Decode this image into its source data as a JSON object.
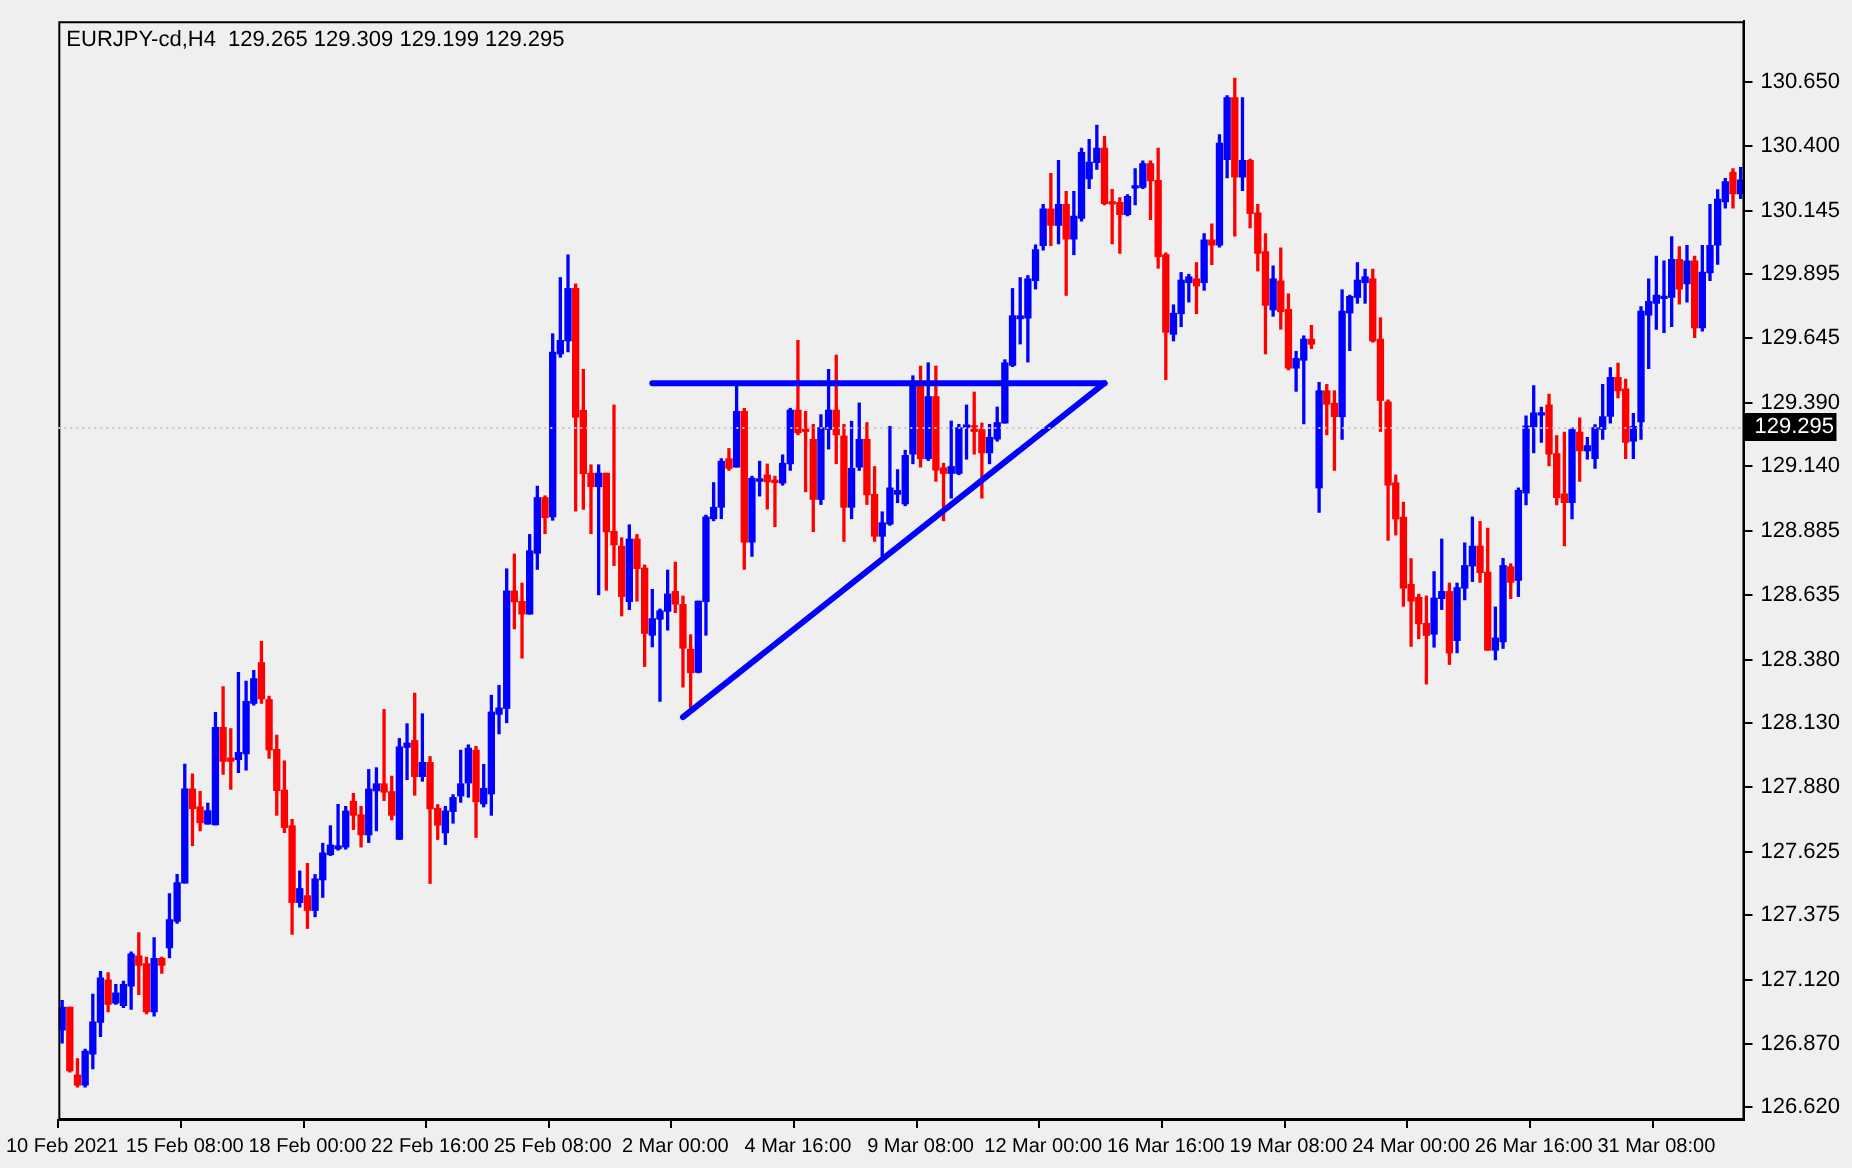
{
  "chart_data": {
    "type": "candlestick",
    "title": "EURJPY-cd,H4  129.265 129.309 129.199 129.295",
    "categories": [
      "10 Feb 2021",
      null,
      null,
      null,
      null,
      null,
      null,
      null,
      null,
      null,
      null,
      null,
      null,
      null,
      null,
      null,
      "15 Feb 08:00",
      null,
      null,
      null,
      null,
      null,
      null,
      null,
      null,
      null,
      null,
      null,
      null,
      null,
      null,
      null,
      "18 Feb 00:00",
      null,
      null,
      null,
      null,
      null,
      null,
      null,
      null,
      null,
      null,
      null,
      null,
      null,
      null,
      null,
      "22 Feb 16:00",
      null,
      null,
      null,
      null,
      null,
      null,
      null,
      null,
      null,
      null,
      null,
      null,
      null,
      null,
      null,
      "25 Feb 08:00",
      null,
      null,
      null,
      null,
      null,
      null,
      null,
      null,
      null,
      null,
      null,
      null,
      null,
      null,
      null,
      "2 Mar 00:00",
      null,
      null,
      null,
      null,
      null,
      null,
      null,
      null,
      null,
      null,
      null,
      null,
      null,
      null,
      null,
      "4 Mar 16:00",
      null,
      null,
      null,
      null,
      null,
      null,
      null,
      null,
      null,
      null,
      null,
      null,
      null,
      null,
      null,
      "9 Mar 08:00",
      null,
      null,
      null,
      null,
      null,
      null,
      null,
      null,
      null,
      null,
      null,
      null,
      null,
      null,
      null,
      "12 Mar 00:00",
      null,
      null,
      null,
      null,
      null,
      null,
      null,
      null,
      null,
      null,
      null,
      null,
      null,
      null,
      null,
      "16 Mar 16:00",
      null,
      null,
      null,
      null,
      null,
      null,
      null,
      null,
      null,
      null,
      null,
      null,
      null,
      null,
      null,
      "19 Mar 08:00",
      null,
      null,
      null,
      null,
      null,
      null,
      null,
      null,
      null,
      null,
      null,
      null,
      null,
      null,
      null,
      "24 Mar 00:00",
      null,
      null,
      null,
      null,
      null,
      null,
      null,
      null,
      null,
      null,
      null,
      null,
      null,
      null,
      null,
      "26 Mar 16:00",
      null,
      null,
      null,
      null,
      null,
      null,
      null,
      null,
      null,
      null,
      null,
      null,
      null,
      null,
      null,
      "31 Mar 08:00",
      null,
      null,
      null,
      null,
      null,
      null,
      null,
      null,
      null,
      null,
      null
    ],
    "ohlc": [
      [
        126.924,
        127.039,
        126.873,
        127.013
      ],
      [
        127.013,
        127.013,
        126.759,
        126.764
      ],
      [
        126.746,
        126.81,
        126.7,
        126.708
      ],
      [
        126.708,
        126.848,
        126.7,
        126.84
      ],
      [
        126.83,
        127.064,
        126.772,
        126.955
      ],
      [
        126.955,
        127.153,
        126.899,
        127.128
      ],
      [
        127.12,
        127.148,
        126.996,
        127.026
      ],
      [
        127.031,
        127.102,
        127.026,
        127.069
      ],
      [
        127.021,
        127.115,
        127.013,
        127.102
      ],
      [
        127.097,
        127.23,
        127.006,
        127.222
      ],
      [
        127.214,
        127.306,
        127.064,
        127.179
      ],
      [
        127.184,
        127.209,
        126.988,
        126.996
      ],
      [
        126.996,
        127.286,
        126.98,
        127.204
      ],
      [
        127.204,
        127.209,
        127.148,
        127.179
      ],
      [
        127.248,
        127.459,
        127.209,
        127.357
      ],
      [
        127.352,
        127.535,
        127.344,
        127.502
      ],
      [
        127.502,
        127.968,
        127.502,
        127.871
      ],
      [
        127.871,
        127.93,
        127.65,
        127.795
      ],
      [
        127.8,
        127.861,
        127.708,
        127.739
      ],
      [
        127.734,
        127.815,
        127.734,
        127.785
      ],
      [
        127.731,
        128.171,
        127.731,
        128.113
      ],
      [
        128.113,
        128.273,
        127.93,
        127.981
      ],
      [
        127.993,
        128.108,
        127.871,
        127.981
      ],
      [
        127.988,
        128.329,
        127.937,
        128.014
      ],
      [
        128.011,
        128.294,
        127.947,
        128.215
      ],
      [
        128.209,
        128.337,
        128.202,
        128.304
      ],
      [
        128.367,
        128.451,
        128.209,
        128.227
      ],
      [
        128.222,
        128.235,
        127.993,
        128.026
      ],
      [
        128.026,
        128.082,
        127.769,
        127.866
      ],
      [
        127.866,
        127.981,
        127.701,
        127.721
      ],
      [
        127.726,
        127.751,
        127.301,
        127.426
      ],
      [
        127.426,
        127.548,
        127.408,
        127.479
      ],
      [
        127.451,
        127.578,
        127.324,
        127.395
      ],
      [
        127.395,
        127.534,
        127.37,
        127.517
      ],
      [
        127.515,
        127.657,
        127.446,
        127.619
      ],
      [
        127.614,
        127.726,
        127.611,
        127.65
      ],
      [
        127.637,
        127.81,
        127.632,
        127.647
      ],
      [
        127.644,
        127.802,
        127.636,
        127.784
      ],
      [
        127.822,
        127.853,
        127.713,
        127.769
      ],
      [
        127.769,
        127.802,
        127.644,
        127.692
      ],
      [
        127.692,
        127.947,
        127.662,
        127.87
      ],
      [
        127.865,
        127.954,
        127.708,
        127.891
      ],
      [
        127.891,
        128.183,
        127.827,
        127.86
      ],
      [
        127.86,
        127.921,
        127.751,
        127.769
      ],
      [
        127.674,
        128.069,
        127.674,
        128.036
      ],
      [
        128.036,
        128.127,
        127.909,
        128.051
      ],
      [
        128.061,
        128.247,
        127.848,
        127.921
      ],
      [
        127.921,
        128.166,
        127.903,
        127.975
      ],
      [
        127.975,
        127.998,
        127.501,
        127.794
      ],
      [
        127.794,
        127.809,
        127.674,
        127.73
      ],
      [
        127.7,
        127.802,
        127.654,
        127.784
      ],
      [
        127.784,
        127.848,
        127.738,
        127.837
      ],
      [
        127.845,
        128.023,
        127.82,
        127.891
      ],
      [
        127.896,
        128.044,
        127.84,
        128.031
      ],
      [
        128.023,
        128.038,
        127.682,
        127.822
      ],
      [
        127.814,
        127.967,
        127.802,
        127.873
      ],
      [
        127.853,
        128.239,
        127.769,
        128.173
      ],
      [
        128.166,
        128.278,
        128.089,
        128.189
      ],
      [
        128.189,
        128.736,
        128.133,
        128.649
      ],
      [
        128.649,
        128.794,
        128.502,
        128.608
      ],
      [
        128.608,
        128.68,
        128.387,
        128.56
      ],
      [
        128.56,
        128.871,
        128.56,
        128.807
      ],
      [
        128.799,
        129.061,
        128.736,
        129.016
      ],
      [
        129.016,
        129.023,
        128.876,
        128.939
      ],
      [
        128.942,
        129.66,
        128.929,
        129.588
      ],
      [
        129.583,
        129.881,
        129.57,
        129.634
      ],
      [
        129.634,
        129.97,
        129.591,
        129.838
      ],
      [
        129.838,
        129.856,
        128.965,
        129.334
      ],
      [
        129.359,
        129.52,
        128.972,
        129.112
      ],
      [
        129.112,
        129.145,
        128.876,
        129.061
      ],
      [
        129.061,
        129.145,
        128.636,
        129.112
      ],
      [
        129.112,
        129.112,
        128.654,
        128.883
      ],
      [
        128.883,
        129.38,
        128.751,
        128.832
      ],
      [
        128.825,
        128.858,
        128.553,
        128.629
      ],
      [
        128.609,
        128.909,
        128.578,
        128.853
      ],
      [
        128.853,
        128.871,
        128.611,
        128.739
      ],
      [
        128.739,
        128.751,
        128.354,
        128.484
      ],
      [
        128.477,
        128.655,
        128.431,
        128.54
      ],
      [
        128.54,
        128.578,
        128.217,
        128.571
      ],
      [
        128.571,
        128.731,
        128.497,
        128.637
      ],
      [
        128.647,
        128.762,
        128.566,
        128.599
      ],
      [
        128.596,
        128.629,
        128.273,
        128.426
      ],
      [
        128.42,
        128.477,
        128.191,
        128.329
      ],
      [
        128.331,
        128.609,
        128.329,
        128.609
      ],
      [
        128.609,
        128.947,
        128.477,
        128.94
      ],
      [
        128.935,
        129.075,
        128.927,
        128.978
      ],
      [
        128.98,
        129.169,
        128.935,
        129.159
      ],
      [
        129.169,
        129.209,
        129.125,
        129.133
      ],
      [
        129.138,
        129.456,
        129.138,
        129.355
      ],
      [
        129.355,
        129.367,
        128.736,
        128.843
      ],
      [
        128.843,
        129.1,
        128.787,
        129.092
      ],
      [
        129.082,
        129.159,
        129.024,
        129.09
      ],
      [
        129.105,
        129.148,
        128.973,
        129.08
      ],
      [
        129.082,
        129.1,
        128.904,
        129.077
      ],
      [
        129.075,
        129.184,
        129.067,
        129.151
      ],
      [
        129.151,
        129.367,
        129.125,
        129.36
      ],
      [
        129.36,
        129.634,
        129.265,
        129.273
      ],
      [
        129.281,
        129.355,
        129.041,
        129.278
      ],
      [
        129.245,
        129.304,
        128.884,
        129.011
      ],
      [
        129.011,
        129.342,
        128.991,
        129.291
      ],
      [
        129.286,
        129.52,
        129.209,
        129.36
      ],
      [
        129.36,
        129.576,
        129.151,
        129.265
      ],
      [
        129.258,
        129.304,
        128.846,
        128.98
      ],
      [
        128.98,
        129.316,
        128.935,
        129.131
      ],
      [
        129.138,
        129.388,
        129.125,
        129.245
      ],
      [
        129.245,
        129.311,
        128.991,
        129.029
      ],
      [
        129.029,
        129.138,
        128.846,
        128.866
      ],
      [
        128.866,
        128.96,
        128.787,
        128.917
      ],
      [
        128.914,
        129.296,
        128.909,
        129.054
      ],
      [
        129.031,
        129.126,
        128.998,
        129.044
      ],
      [
        128.993,
        129.202,
        128.986,
        129.182
      ],
      [
        129.189,
        129.495,
        129.151,
        129.469
      ],
      [
        129.469,
        129.533,
        129.138,
        129.171
      ],
      [
        129.171,
        129.546,
        129.164,
        129.413
      ],
      [
        129.413,
        129.533,
        129.082,
        129.126
      ],
      [
        129.133,
        129.151,
        128.927,
        129.113
      ],
      [
        129.113,
        129.317,
        129.016,
        129.138
      ],
      [
        129.113,
        129.304,
        129.108,
        129.291
      ],
      [
        129.294,
        129.38,
        129.169,
        129.299
      ],
      [
        129.299,
        129.431,
        129.189,
        129.278
      ],
      [
        129.283,
        129.309,
        129.016,
        129.194
      ],
      [
        129.194,
        129.304,
        129.151,
        129.253
      ],
      [
        129.248,
        129.372,
        129.24,
        129.311
      ],
      [
        129.311,
        129.558,
        129.311,
        129.546
      ],
      [
        129.538,
        129.838,
        129.533,
        129.731
      ],
      [
        129.721,
        129.881,
        129.622,
        129.731
      ],
      [
        129.724,
        129.889,
        129.551,
        129.876
      ],
      [
        129.871,
        130.009,
        129.838,
        129.991
      ],
      [
        130.009,
        130.169,
        129.991,
        130.151
      ],
      [
        130.151,
        130.291,
        130.009,
        130.088
      ],
      [
        130.088,
        130.342,
        130.016,
        130.169
      ],
      [
        130.169,
        130.22,
        129.813,
        130.034
      ],
      [
        130.034,
        130.22,
        129.973,
        130.123
      ],
      [
        130.116,
        130.39,
        130.105,
        130.373
      ],
      [
        130.271,
        130.424,
        130.233,
        130.335
      ],
      [
        130.335,
        130.48,
        130.309,
        130.39
      ],
      [
        130.39,
        130.436,
        130.169,
        130.174
      ],
      [
        130.177,
        130.228,
        130.016,
        130.172
      ],
      [
        130.177,
        130.195,
        129.978,
        130.131
      ],
      [
        130.131,
        130.207,
        130.126,
        130.2
      ],
      [
        130.235,
        130.309,
        130.169,
        130.24
      ],
      [
        130.238,
        130.34,
        130.233,
        130.329
      ],
      [
        130.329,
        130.34,
        130.111,
        130.263
      ],
      [
        130.263,
        130.39,
        129.92,
        129.965
      ],
      [
        129.971,
        129.978,
        129.482,
        129.668
      ],
      [
        129.66,
        129.774,
        129.634,
        129.741
      ],
      [
        129.741,
        129.901,
        129.69,
        129.871
      ],
      [
        129.863,
        129.894,
        129.787,
        129.884
      ],
      [
        129.876,
        129.94,
        129.741,
        129.85
      ],
      [
        129.863,
        130.054,
        129.833,
        130.029
      ],
      [
        130.029,
        130.092,
        129.934,
        130.011
      ],
      [
        130.011,
        130.443,
        130.003,
        130.41
      ],
      [
        130.347,
        130.596,
        130.275,
        130.588
      ],
      [
        130.588,
        130.665,
        130.046,
        130.278
      ],
      [
        130.278,
        130.588,
        130.225,
        130.342
      ],
      [
        130.342,
        130.347,
        130.079,
        130.135
      ],
      [
        130.135,
        130.169,
        129.909,
        129.978
      ],
      [
        129.983,
        130.054,
        129.583,
        129.774
      ],
      [
        129.756,
        129.927,
        129.731,
        129.876
      ],
      [
        129.868,
        129.998,
        129.68,
        129.749
      ],
      [
        129.756,
        129.817,
        129.52,
        129.527
      ],
      [
        129.527,
        129.591,
        129.436,
        129.563
      ],
      [
        129.558,
        129.652,
        129.308,
        129.639
      ],
      [
        129.639,
        129.693,
        129.604,
        129.621
      ],
      [
        129.056,
        129.469,
        128.96,
        129.436
      ],
      [
        129.436,
        129.461,
        129.265,
        129.385
      ],
      [
        129.387,
        129.436,
        129.125,
        129.336
      ],
      [
        129.336,
        129.833,
        129.247,
        129.749
      ],
      [
        129.744,
        129.812,
        129.596,
        129.807
      ],
      [
        129.805,
        129.94,
        129.782,
        129.871
      ],
      [
        129.863,
        129.914,
        129.782,
        129.884
      ],
      [
        129.876,
        129.914,
        129.629,
        129.634
      ],
      [
        129.639,
        129.723,
        129.278,
        129.4
      ],
      [
        129.392,
        129.4,
        128.85,
        129.067
      ],
      [
        129.074,
        129.105,
        128.871,
        128.934
      ],
      [
        128.939,
        128.998,
        128.591,
        128.662
      ],
      [
        128.675,
        128.776,
        128.433,
        128.611
      ],
      [
        128.624,
        128.636,
        128.463,
        128.522
      ],
      [
        128.522,
        128.629,
        128.285,
        128.476
      ],
      [
        128.481,
        128.725,
        128.43,
        128.621
      ],
      [
        128.621,
        128.853,
        128.578,
        128.647
      ],
      [
        128.647,
        128.68,
        128.362,
        128.407
      ],
      [
        128.456,
        128.68,
        128.408,
        128.662
      ],
      [
        128.662,
        128.838,
        128.616,
        128.749
      ],
      [
        128.749,
        128.94,
        128.688,
        128.825
      ],
      [
        128.825,
        128.922,
        128.685,
        128.723
      ],
      [
        128.723,
        128.896,
        128.418,
        128.418
      ],
      [
        128.418,
        128.586,
        128.38,
        128.464
      ],
      [
        128.451,
        128.777,
        128.425,
        128.749
      ],
      [
        128.744,
        128.756,
        128.621,
        128.685
      ],
      [
        128.693,
        129.054,
        128.629,
        129.044
      ],
      [
        129.036,
        129.337,
        128.99,
        129.298
      ],
      [
        129.296,
        129.456,
        129.194,
        129.349
      ],
      [
        129.342,
        129.372,
        129.235,
        129.349
      ],
      [
        129.38,
        129.423,
        129.143,
        129.189
      ],
      [
        129.189,
        129.26,
        128.99,
        129.018
      ],
      [
        129.031,
        129.273,
        128.828,
        128.998
      ],
      [
        128.998,
        129.291,
        128.934,
        129.283
      ],
      [
        129.273,
        129.329,
        129.082,
        129.202
      ],
      [
        129.202,
        129.253,
        129.169,
        129.22
      ],
      [
        129.171,
        129.303,
        129.133,
        129.291
      ],
      [
        129.286,
        129.461,
        129.247,
        129.334
      ],
      [
        129.337,
        129.527,
        129.311,
        129.489
      ],
      [
        129.489,
        129.545,
        129.41,
        129.438
      ],
      [
        129.443,
        129.482,
        129.171,
        129.235
      ],
      [
        129.24,
        129.347,
        129.171,
        129.296
      ],
      [
        129.316,
        129.767,
        129.247,
        129.749
      ],
      [
        129.736,
        129.876,
        129.525,
        129.787
      ],
      [
        129.782,
        129.965,
        129.68,
        129.812
      ],
      [
        129.8,
        129.947,
        129.667,
        129.805
      ],
      [
        129.805,
        130.042,
        129.69,
        129.952
      ],
      [
        129.952,
        130.003,
        129.779,
        129.838
      ],
      [
        129.858,
        130.008,
        129.787,
        129.947
      ],
      [
        129.947,
        129.965,
        129.647,
        129.685
      ],
      [
        129.685,
        130.008,
        129.673,
        129.902
      ],
      [
        129.902,
        130.169,
        129.871,
        130.008
      ],
      [
        130.011,
        130.227,
        129.935,
        130.189
      ],
      [
        130.181,
        130.271,
        130.156,
        130.258
      ],
      [
        130.296,
        130.309,
        130.156,
        130.212
      ],
      [
        130.212,
        130.314,
        130.194,
        130.265
      ]
    ],
    "colors": [
      "#0000ff",
      "#ff0000",
      "#ff0000",
      "#0000ff",
      "#0000ff",
      "#0000ff",
      "#ff0000",
      "#0000ff",
      "#0000ff",
      "#0000ff",
      "#ff0000",
      "#ff0000",
      "#0000ff",
      "#ff0000",
      "#0000ff",
      "#0000ff",
      "#0000ff",
      "#ff0000",
      "#ff0000",
      "#0000ff",
      "#0000ff",
      "#ff0000",
      "#ff0000",
      "#0000ff",
      "#0000ff",
      "#0000ff",
      "#ff0000",
      "#ff0000",
      "#ff0000",
      "#ff0000",
      "#ff0000",
      "#0000ff",
      "#ff0000",
      "#0000ff",
      "#0000ff",
      "#0000ff",
      "#0000ff",
      "#0000ff",
      "#ff0000",
      "#ff0000",
      "#0000ff",
      "#0000ff",
      "#ff0000",
      "#ff0000",
      "#0000ff",
      "#0000ff",
      "#ff0000",
      "#0000ff",
      "#ff0000",
      "#ff0000",
      "#0000ff",
      "#0000ff",
      "#0000ff",
      "#0000ff",
      "#ff0000",
      "#0000ff",
      "#0000ff",
      "#0000ff",
      "#0000ff",
      "#ff0000",
      "#ff0000",
      "#0000ff",
      "#0000ff",
      "#ff0000",
      "#0000ff",
      "#0000ff",
      "#0000ff",
      "#ff0000",
      "#ff0000",
      "#ff0000",
      "#0000ff",
      "#ff0000",
      "#ff0000",
      "#ff0000",
      "#0000ff",
      "#ff0000",
      "#ff0000",
      "#0000ff",
      "#0000ff",
      "#0000ff",
      "#ff0000",
      "#ff0000",
      "#ff0000",
      "#0000ff",
      "#0000ff",
      "#0000ff",
      "#0000ff",
      "#ff0000",
      "#0000ff",
      "#ff0000",
      "#0000ff",
      "#0000ff",
      "#ff0000",
      "#ff0000",
      "#0000ff",
      "#0000ff",
      "#ff0000",
      "#ff0000",
      "#ff0000",
      "#0000ff",
      "#0000ff",
      "#ff0000",
      "#ff0000",
      "#0000ff",
      "#0000ff",
      "#ff0000",
      "#ff0000",
      "#0000ff",
      "#0000ff",
      "#0000ff",
      "#0000ff",
      "#0000ff",
      "#ff0000",
      "#0000ff",
      "#ff0000",
      "#ff0000",
      "#0000ff",
      "#0000ff",
      "#0000ff",
      "#ff0000",
      "#ff0000",
      "#0000ff",
      "#0000ff",
      "#0000ff",
      "#0000ff",
      "#0000ff",
      "#0000ff",
      "#0000ff",
      "#0000ff",
      "#ff0000",
      "#0000ff",
      "#ff0000",
      "#0000ff",
      "#0000ff",
      "#0000ff",
      "#0000ff",
      "#ff0000",
      "#ff0000",
      "#ff0000",
      "#0000ff",
      "#0000ff",
      "#0000ff",
      "#ff0000",
      "#ff0000",
      "#ff0000",
      "#0000ff",
      "#0000ff",
      "#0000ff",
      "#ff0000",
      "#0000ff",
      "#ff0000",
      "#0000ff",
      "#0000ff",
      "#ff0000",
      "#0000ff",
      "#ff0000",
      "#ff0000",
      "#ff0000",
      "#0000ff",
      "#ff0000",
      "#ff0000",
      "#0000ff",
      "#0000ff",
      "#ff0000",
      "#0000ff",
      "#ff0000",
      "#ff0000",
      "#0000ff",
      "#0000ff",
      "#0000ff",
      "#0000ff",
      "#ff0000",
      "#ff0000",
      "#ff0000",
      "#ff0000",
      "#ff0000",
      "#ff0000",
      "#ff0000",
      "#ff0000",
      "#0000ff",
      "#0000ff",
      "#ff0000",
      "#0000ff",
      "#0000ff",
      "#0000ff",
      "#ff0000",
      "#ff0000",
      "#0000ff",
      "#0000ff",
      "#ff0000",
      "#0000ff",
      "#0000ff",
      "#0000ff",
      "#0000ff",
      "#ff0000",
      "#ff0000",
      "#ff0000",
      "#0000ff",
      "#ff0000",
      "#0000ff",
      "#0000ff",
      "#0000ff",
      "#0000ff",
      "#ff0000",
      "#ff0000",
      "#0000ff",
      "#0000ff",
      "#0000ff",
      "#0000ff",
      "#0000ff",
      "#0000ff",
      "#ff0000",
      "#0000ff",
      "#ff0000",
      "#0000ff",
      "#0000ff",
      "#0000ff",
      "#0000ff",
      "#ff0000",
      "#0000ff"
    ],
    "series": [
      {
        "type": "line",
        "color": "#0000ff",
        "values": [
          null,
          null,
          null,
          null,
          null,
          null,
          null,
          null,
          null,
          null,
          null,
          null,
          null,
          null,
          null,
          null,
          null,
          null,
          null,
          null,
          null,
          null,
          null,
          null,
          null,
          null,
          null,
          null,
          null,
          null,
          null,
          null,
          null,
          null,
          null,
          null,
          null,
          null,
          null,
          null,
          null,
          null,
          null,
          null,
          null,
          null,
          null,
          null,
          null,
          null,
          null,
          null,
          null,
          null,
          null,
          null,
          null,
          null,
          null,
          null,
          null,
          null,
          null,
          null,
          null,
          null,
          null,
          null,
          null,
          null,
          null,
          null,
          null,
          null,
          null,
          null,
          null,
          129.467,
          null,
          null,
          null,
          null,
          null,
          null,
          null,
          null,
          null,
          null,
          null,
          null,
          null,
          null,
          null,
          null,
          null,
          null,
          null,
          null,
          null,
          null,
          null,
          null,
          null,
          null,
          null,
          null,
          null,
          null,
          null,
          null,
          null,
          null,
          null,
          null,
          null,
          null,
          null,
          null,
          null,
          null,
          null,
          null,
          null,
          null,
          null,
          null,
          null,
          null,
          null,
          null,
          null,
          null,
          null,
          null,
          null,
          null,
          129.467,
          null,
          null,
          null,
          null,
          null,
          null,
          null,
          null,
          null,
          null,
          null,
          null,
          null,
          null,
          null,
          null,
          null,
          null,
          null,
          null,
          null,
          null,
          null,
          null,
          null,
          null,
          null,
          null,
          null,
          null,
          null,
          null,
          null,
          null,
          null,
          null,
          null,
          null,
          null,
          null,
          null,
          null,
          null,
          null,
          null,
          null,
          null,
          null,
          null,
          null,
          null,
          null,
          null,
          null,
          null,
          null,
          null,
          null,
          null,
          null,
          null,
          null,
          null,
          null,
          null,
          null,
          null,
          null,
          null,
          null,
          null,
          null,
          null,
          null,
          null,
          null,
          null,
          null,
          null,
          null,
          null,
          null,
          null
        ]
      },
      {
        "type": "line",
        "color": "#0000ff",
        "values": [
          null,
          null,
          null,
          null,
          null,
          null,
          null,
          null,
          null,
          null,
          null,
          null,
          null,
          null,
          null,
          null,
          null,
          null,
          null,
          null,
          null,
          null,
          null,
          null,
          null,
          null,
          null,
          null,
          null,
          null,
          null,
          null,
          null,
          null,
          null,
          null,
          null,
          null,
          null,
          null,
          null,
          null,
          null,
          null,
          null,
          null,
          null,
          null,
          null,
          null,
          null,
          null,
          null,
          null,
          null,
          null,
          null,
          null,
          null,
          null,
          null,
          null,
          null,
          null,
          null,
          null,
          null,
          null,
          null,
          null,
          null,
          null,
          null,
          null,
          null,
          null,
          null,
          null,
          null,
          null,
          null,
          128.154,
          null,
          null,
          null,
          null,
          null,
          null,
          null,
          null,
          null,
          null,
          null,
          null,
          null,
          null,
          null,
          null,
          null,
          null,
          null,
          null,
          null,
          null,
          null,
          null,
          null,
          null,
          null,
          null,
          null,
          null,
          null,
          null,
          null,
          null,
          null,
          null,
          null,
          null,
          null,
          null,
          null,
          null,
          null,
          null,
          null,
          null,
          null,
          null,
          null,
          null,
          null,
          null,
          null,
          null,
          129.467,
          null,
          null,
          null,
          null,
          null,
          null,
          null,
          null,
          null,
          null,
          null,
          null,
          null,
          null,
          null,
          null,
          null,
          null,
          null,
          null,
          null,
          null,
          null,
          null,
          null,
          null,
          null,
          null,
          null,
          null,
          null,
          null,
          null,
          null,
          null,
          null,
          null,
          null,
          null,
          null,
          null,
          null,
          null,
          null,
          null,
          null,
          null,
          null,
          null,
          null,
          null,
          null,
          null,
          null,
          null,
          null,
          null,
          null,
          null,
          null,
          null,
          null,
          null,
          null,
          null,
          null,
          null,
          null,
          null,
          null,
          null,
          null,
          null,
          null,
          null,
          null,
          null,
          null,
          null,
          null,
          null,
          null,
          null
        ]
      }
    ],
    "ylim": [
      126.57,
      130.89
    ],
    "yticks": [
      {
        "value": 126.62,
        "label": "126.620"
      },
      {
        "value": 126.87,
        "label": "126.870"
      },
      {
        "value": 127.12,
        "label": "127.120"
      },
      {
        "value": 127.375,
        "label": "127.375"
      },
      {
        "value": 127.625,
        "label": "127.625"
      },
      {
        "value": 127.88,
        "label": "127.880"
      },
      {
        "value": 128.13,
        "label": "128.130"
      },
      {
        "value": 128.38,
        "label": "128.380"
      },
      {
        "value": 128.635,
        "label": "128.635"
      },
      {
        "value": 128.885,
        "label": "128.885"
      },
      {
        "value": 129.14,
        "label": "129.140"
      },
      {
        "value": 129.39,
        "label": "129.390"
      },
      {
        "value": 129.645,
        "label": "129.645"
      },
      {
        "value": 129.895,
        "label": "129.895"
      },
      {
        "value": 130.145,
        "label": "130.145"
      },
      {
        "value": 130.4,
        "label": "130.400"
      },
      {
        "value": 130.65,
        "label": "130.650"
      }
    ],
    "ref_lines": [
      {
        "axis": "y",
        "value": 129.295,
        "label": "129.295",
        "color": "#c8c8c8",
        "line_style": "dotted"
      }
    ],
    "grid": false,
    "legend": false
  }
}
